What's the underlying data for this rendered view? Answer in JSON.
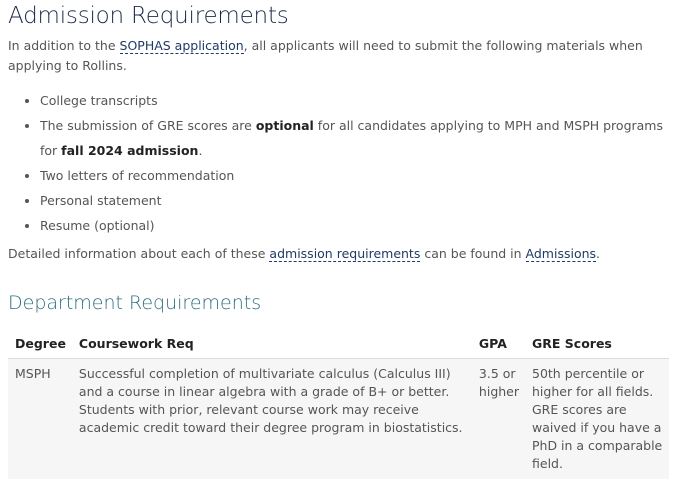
{
  "title": "Admission Requirements",
  "intro": {
    "before": "In addition to the ",
    "link": "SOPHAS application",
    "after": ", all applicants will need to submit the following materials when applying to Rollins."
  },
  "list": [
    {
      "text": "College transcripts"
    },
    {
      "before": "The submission of GRE scores are ",
      "bold1": "optional",
      "mid": " for all candidates applying to MPH and MSPH programs for ",
      "bold2": "fall 2024 admission",
      "after": "."
    },
    {
      "text": "Two letters of recommendation"
    },
    {
      "text": "Personal statement"
    },
    {
      "text": "Resume (optional)"
    }
  ],
  "detail": {
    "before": "Detailed information about each of these ",
    "link1": "admission requirements",
    "mid": " can be found in ",
    "link2": "Admissions",
    "after": "."
  },
  "department": {
    "title": "Department Requirements",
    "headers": [
      "Degree",
      "Coursework Req",
      "GPA",
      "GRE Scores"
    ],
    "rows": [
      [
        "MSPH",
        "Successful completion of multivariate calculus (Calculus III) and a course in linear algebra with a grade of B+ or better. Students with prior, relevant course work may receive academic credit toward their degree program in biostatistics.",
        "3.5 or higher",
        "50th percentile or higher for all fields. GRE scores are waived if you have a PhD in a comparable field."
      ]
    ]
  }
}
